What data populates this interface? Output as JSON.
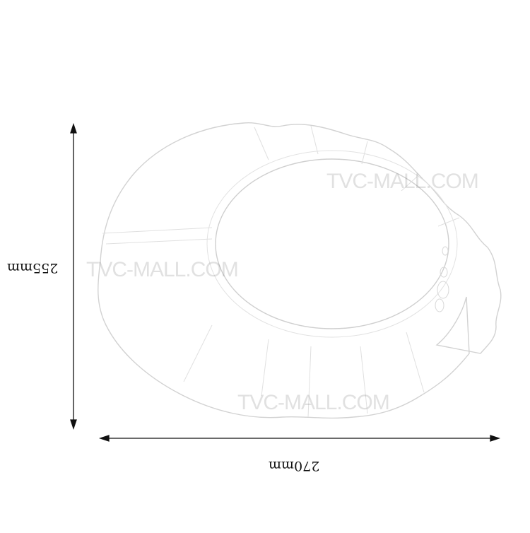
{
  "dimensions": {
    "width_label": "270mm",
    "height_label": "255mm"
  },
  "watermarks": [
    "TVC-MALL.COM",
    "TVC-MALL.COM",
    "TVC-MALL.COM"
  ],
  "colors": {
    "background": "#ffffff",
    "outline": "#c8c8c8",
    "arrow": "#111111"
  }
}
